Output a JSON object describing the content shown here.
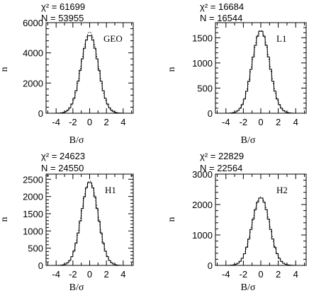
{
  "chart_data": [
    {
      "type": "histogram",
      "detector": "GEO",
      "chi2_label": "χ² = 61699",
      "n_label": "N = 53955",
      "xlabel": "B/σ",
      "ylabel": "n",
      "xlim": [
        -5.2,
        5.2
      ],
      "ylim": [
        0,
        6000
      ],
      "xticks": [
        -4,
        -2,
        0,
        2,
        4
      ],
      "yticks": [
        0,
        2000,
        4000,
        6000
      ],
      "bin_width": 0.25,
      "peak": 5170,
      "sigma": 1.03,
      "expected_peak": 5380,
      "expected_sigma": 1.0,
      "series": [
        {
          "name": "observed",
          "style": "histogram-step"
        },
        {
          "name": "expected",
          "style": "dotted-curve"
        }
      ]
    },
    {
      "type": "histogram",
      "detector": "L1",
      "chi2_label": "χ² = 16684",
      "n_label": "N = 16544",
      "xlabel": "B/σ",
      "ylabel": "n",
      "xlim": [
        -5.2,
        5.2
      ],
      "ylim": [
        0,
        1800
      ],
      "xticks": [
        -4,
        -2,
        0,
        2,
        4
      ],
      "yticks": [
        0,
        500,
        1000,
        1500
      ],
      "bin_width": 0.25,
      "peak": 1640,
      "sigma": 1.0,
      "expected_peak": 1650,
      "expected_sigma": 1.0,
      "series": [
        {
          "name": "observed",
          "style": "histogram-step"
        },
        {
          "name": "expected",
          "style": "dotted-curve"
        }
      ]
    },
    {
      "type": "histogram",
      "detector": "H1",
      "chi2_label": "χ² = 24623",
      "n_label": "N = 24550",
      "xlabel": "B/σ",
      "ylabel": "n",
      "xlim": [
        -5.2,
        5.2
      ],
      "ylim": [
        0,
        2650
      ],
      "xticks": [
        -4,
        -2,
        0,
        2,
        4
      ],
      "yticks": [
        0,
        500,
        1000,
        1500,
        2000,
        2500
      ],
      "bin_width": 0.25,
      "peak": 2420,
      "sigma": 1.0,
      "expected_peak": 2450,
      "expected_sigma": 1.0,
      "series": [
        {
          "name": "observed",
          "style": "histogram-step"
        },
        {
          "name": "expected",
          "style": "dotted-curve"
        }
      ]
    },
    {
      "type": "histogram",
      "detector": "H2",
      "chi2_label": "χ² = 22829",
      "n_label": "N = 22564",
      "xlabel": "B/σ",
      "ylabel": "n",
      "xlim": [
        -5.2,
        5.2
      ],
      "ylim": [
        0,
        3000
      ],
      "xticks": [
        -4,
        -2,
        0,
        2,
        4
      ],
      "yticks": [
        0,
        1000,
        2000,
        3000
      ],
      "bin_width": 0.25,
      "peak": 2230,
      "sigma": 1.0,
      "expected_peak": 2250,
      "expected_sigma": 1.0,
      "series": [
        {
          "name": "observed",
          "style": "histogram-step"
        },
        {
          "name": "expected",
          "style": "dotted-curve"
        }
      ]
    }
  ]
}
